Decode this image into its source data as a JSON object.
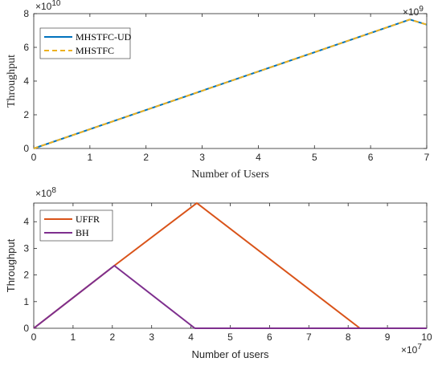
{
  "chart_data": [
    {
      "type": "line",
      "title": "",
      "xlabel": "Number of Users",
      "ylabel": "Throughput",
      "xlim": [
        0,
        7
      ],
      "ylim": [
        0,
        8
      ],
      "x_exponent_label": "×10",
      "x_exponent": "9",
      "y_exponent_label": "×10",
      "y_exponent": "10",
      "xticks": [
        0,
        1,
        2,
        3,
        4,
        5,
        6,
        7
      ],
      "yticks": [
        0,
        2,
        4,
        6,
        8
      ],
      "legend_position": "top-left",
      "grid": false,
      "series": [
        {
          "name": "MHSTFC-UD",
          "color": "#0072BD",
          "style": "solid",
          "x": [
            0,
            6.7,
            7
          ],
          "y": [
            0,
            7.65,
            7.35
          ]
        },
        {
          "name": "MHSTFC",
          "color": "#EDB120",
          "style": "dashed",
          "x": [
            0,
            6.7,
            7
          ],
          "y": [
            0,
            7.65,
            7.35
          ]
        }
      ]
    },
    {
      "type": "line",
      "title": "",
      "xlabel": "Number of users",
      "ylabel": "Throughput",
      "xlim": [
        0,
        10
      ],
      "ylim": [
        0,
        4.7
      ],
      "x_exponent_label": "×10",
      "x_exponent": "7",
      "y_exponent_label": "×10",
      "y_exponent": "8",
      "xticks": [
        0,
        1,
        2,
        3,
        4,
        5,
        6,
        7,
        8,
        9,
        10
      ],
      "yticks": [
        0,
        1,
        2,
        3,
        4
      ],
      "legend_position": "top-left",
      "grid": false,
      "series": [
        {
          "name": "UFFR",
          "color": "#D95319",
          "style": "solid",
          "x": [
            0,
            2.05,
            4.15,
            8.3,
            10
          ],
          "y": [
            0,
            2.35,
            4.7,
            0,
            0
          ]
        },
        {
          "name": "BH",
          "color": "#7E2F8E",
          "style": "solid",
          "x": [
            0,
            2.05,
            4.1,
            10
          ],
          "y": [
            0,
            2.35,
            0,
            0
          ]
        }
      ]
    }
  ]
}
